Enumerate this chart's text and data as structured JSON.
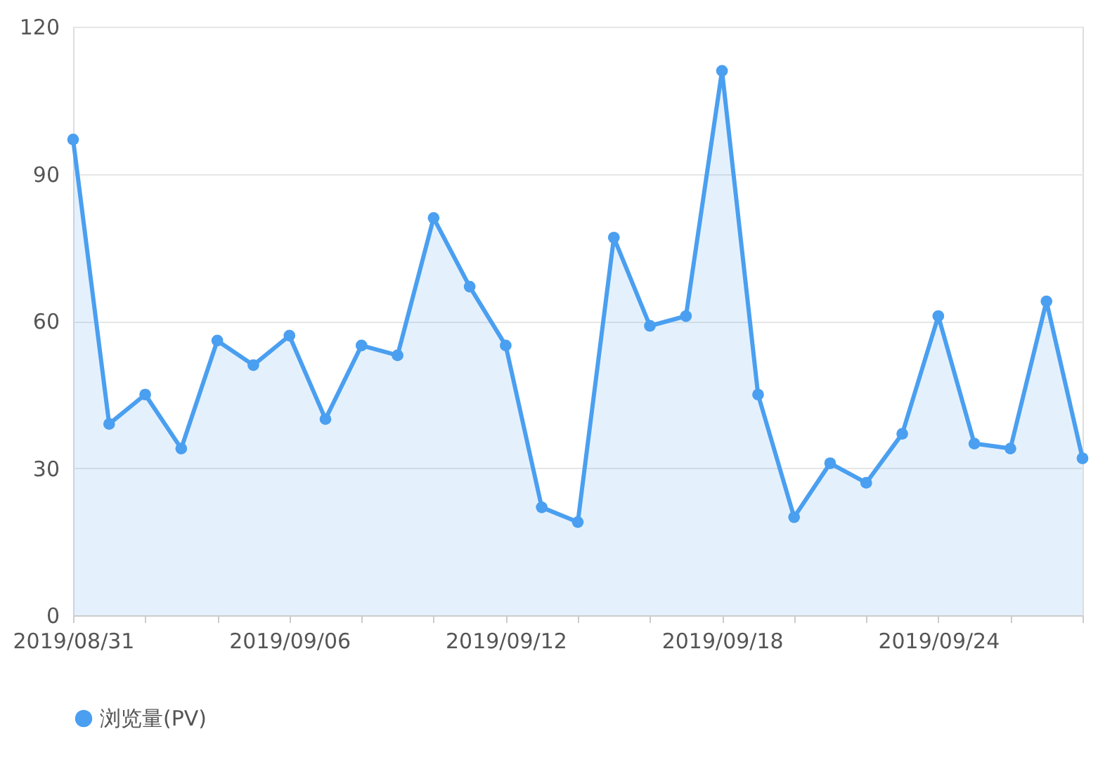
{
  "chart_data": {
    "type": "area",
    "categories": [
      "2019/08/31",
      null,
      null,
      null,
      null,
      null,
      "2019/09/06",
      null,
      null,
      null,
      null,
      null,
      "2019/09/12",
      null,
      null,
      null,
      null,
      null,
      "2019/09/18",
      null,
      null,
      null,
      null,
      null,
      "2019/09/24",
      null,
      null,
      null,
      null
    ],
    "series": [
      {
        "name": "浏览量(PV)",
        "color": "#4a9ff0",
        "values": [
          97,
          39,
          45,
          34,
          56,
          51,
          57,
          40,
          55,
          53,
          81,
          67,
          55,
          22,
          19,
          77,
          59,
          61,
          111,
          45,
          20,
          31,
          27,
          37,
          61,
          35,
          34,
          64,
          32
        ]
      }
    ],
    "ylim": [
      0,
      120
    ],
    "yticks": [
      0,
      30,
      60,
      90,
      120
    ],
    "grid": "y",
    "legend": "bottom",
    "marker": "circle"
  }
}
